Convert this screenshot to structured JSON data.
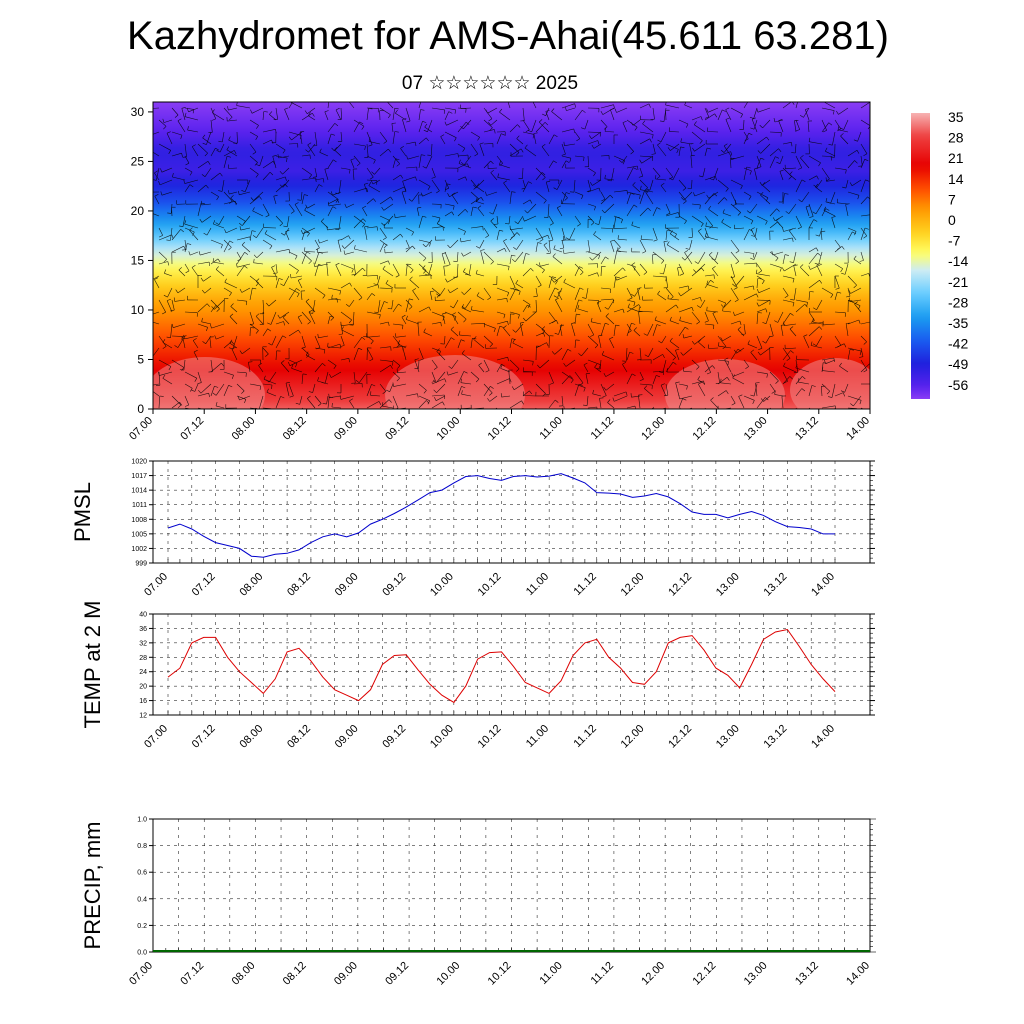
{
  "title": "Kazhydromet for AMS-Ahai(45.611 63.281)",
  "subtitle": "07 ☆☆☆☆☆☆ 2025",
  "x_tick_labels": [
    "07.00",
    "07.12",
    "08.00",
    "08.12",
    "09.00",
    "09.12",
    "10.00",
    "10.12",
    "11.00",
    "11.12",
    "12.00",
    "12.12",
    "13.00",
    "13.12",
    "14.00"
  ],
  "chart_data": [
    {
      "type": "heatmap",
      "name": "temperature-wind-cross-section",
      "x_categories": [
        "07.00",
        "07.12",
        "08.00",
        "08.12",
        "09.00",
        "09.12",
        "10.00",
        "10.12",
        "11.00",
        "11.12",
        "12.00",
        "12.12",
        "13.00",
        "13.12",
        "14.00"
      ],
      "y_ticks": [
        "0",
        "5",
        "10",
        "15",
        "20",
        "25",
        "30"
      ],
      "ylim": [
        0,
        31
      ],
      "colorbar": {
        "labels": [
          "35",
          "28",
          "21",
          "14",
          "7",
          "0",
          "-7",
          "-14",
          "-21",
          "-28",
          "-35",
          "-42",
          "-49",
          "-56"
        ],
        "range": [
          -60,
          38
        ],
        "stops": [
          {
            "v": 38,
            "color": "#f7b3b3"
          },
          {
            "v": 30,
            "color": "#ee4040"
          },
          {
            "v": 20,
            "color": "#e60000"
          },
          {
            "v": 12,
            "color": "#ff4d00"
          },
          {
            "v": 5,
            "color": "#ff9900"
          },
          {
            "v": -3,
            "color": "#ffd21f"
          },
          {
            "v": -10,
            "color": "#ffff66"
          },
          {
            "v": -16,
            "color": "#ccecf5"
          },
          {
            "v": -24,
            "color": "#66ccff"
          },
          {
            "v": -32,
            "color": "#1a9cf0"
          },
          {
            "v": -40,
            "color": "#1a5cf0"
          },
          {
            "v": -48,
            "color": "#1f1fdd"
          },
          {
            "v": -56,
            "color": "#5a22ee"
          },
          {
            "v": -60,
            "color": "#8a3df5"
          }
        ]
      },
      "temperature_profile": [
        {
          "height": 0,
          "temp": 32
        },
        {
          "height": 4,
          "temp": 20
        },
        {
          "height": 8,
          "temp": 10
        },
        {
          "height": 11,
          "temp": 3
        },
        {
          "height": 14,
          "temp": -8
        },
        {
          "height": 16,
          "temp": -17
        },
        {
          "height": 18,
          "temp": -28
        },
        {
          "height": 21,
          "temp": -42
        },
        {
          "height": 24,
          "temp": -52
        },
        {
          "height": 26,
          "temp": -50
        },
        {
          "height": 28,
          "temp": -56
        },
        {
          "height": 31,
          "temp": -60
        }
      ]
    },
    {
      "type": "line",
      "ylabel": "PMSL",
      "y_ticks": [
        "1020",
        "1017",
        "1014",
        "1011",
        "1008",
        "1005",
        "1002",
        "999"
      ],
      "ylim": [
        999,
        1020
      ],
      "x": [
        0,
        3,
        6,
        9,
        12,
        15,
        18,
        21,
        24,
        27,
        30,
        33,
        36,
        39,
        42,
        45,
        48,
        51,
        54,
        57,
        60,
        63,
        66,
        69,
        72,
        75,
        78,
        81,
        84,
        87,
        90,
        93,
        96,
        99,
        102,
        105,
        108,
        111,
        114,
        117,
        120,
        123,
        126,
        129,
        132,
        135,
        138,
        141,
        144,
        147,
        150,
        153,
        156,
        159,
        162,
        165,
        168
      ],
      "series": [
        {
          "color": "#0000cc",
          "values": [
            1006.2,
            1007.0,
            1006.0,
            1004.5,
            1003.2,
            1002.6,
            1002.0,
            1000.4,
            1000.2,
            1000.8,
            1001.0,
            1001.7,
            1003.2,
            1004.4,
            1005.0,
            1004.4,
            1005.2,
            1007.0,
            1008.0,
            1009.2,
            1010.5,
            1012.0,
            1013.5,
            1014.0,
            1015.5,
            1016.8,
            1017.0,
            1016.4,
            1016.0,
            1016.8,
            1017.0,
            1016.7,
            1016.9,
            1017.4,
            1016.5,
            1015.5,
            1013.5,
            1013.4,
            1013.2,
            1012.5,
            1012.8,
            1013.3,
            1012.6,
            1011.2,
            1009.5,
            1009.0,
            1009.0,
            1008.3,
            1009.0,
            1009.6,
            1008.8,
            1007.5,
            1006.5,
            1006.3,
            1006.0,
            1005.0,
            1005.0
          ]
        }
      ]
    },
    {
      "type": "line",
      "ylabel": "TEMP at 2 M",
      "y_ticks": [
        "40",
        "36",
        "32",
        "28",
        "24",
        "20",
        "16",
        "12"
      ],
      "ylim": [
        12,
        40
      ],
      "x": [
        0,
        3,
        6,
        9,
        12,
        15,
        18,
        21,
        24,
        27,
        30,
        33,
        36,
        39,
        42,
        45,
        48,
        51,
        54,
        57,
        60,
        63,
        66,
        69,
        72,
        75,
        78,
        81,
        84,
        87,
        90,
        93,
        96,
        99,
        102,
        105,
        108,
        111,
        114,
        117,
        120,
        123,
        126,
        129,
        132,
        135,
        138,
        141,
        144,
        147,
        150,
        153,
        156,
        159,
        162,
        165,
        168
      ],
      "series": [
        {
          "color": "#dd0000",
          "values": [
            22.5,
            25.0,
            32.0,
            33.5,
            33.5,
            28.0,
            24.0,
            21.0,
            18.0,
            22.0,
            29.5,
            30.5,
            27.0,
            22.5,
            19.0,
            17.5,
            16.0,
            19.0,
            26.0,
            28.5,
            28.7,
            24.5,
            20.5,
            17.5,
            15.5,
            20.0,
            27.5,
            29.3,
            29.5,
            25.5,
            21.0,
            19.5,
            18.0,
            21.5,
            28.5,
            32.0,
            33.0,
            28.0,
            25.0,
            21.0,
            20.5,
            24.0,
            32.0,
            33.5,
            34.0,
            30.0,
            25.0,
            23.0,
            19.5,
            26.0,
            33.0,
            35.0,
            35.7,
            31.0,
            26.0,
            22.0,
            18.5
          ]
        }
      ]
    },
    {
      "type": "line",
      "ylabel": "PRECIP, mm",
      "y_ticks": [
        "1.0",
        "0.8",
        "0.6",
        "0.4",
        "0.2",
        "0.0"
      ],
      "ylim": [
        0,
        1
      ],
      "series": [
        {
          "color": "#006600",
          "values": [
            0,
            0,
            0,
            0,
            0,
            0,
            0,
            0,
            0,
            0,
            0,
            0,
            0,
            0,
            0
          ]
        }
      ]
    }
  ]
}
